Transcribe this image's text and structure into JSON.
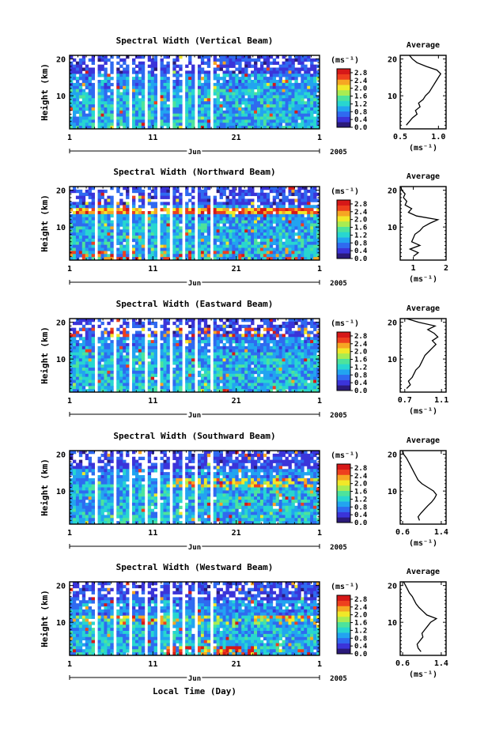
{
  "figure": {
    "xlabel": "Local Time (Day)",
    "colorbar_unit": "(ms⁻¹)",
    "colorbar_ticks": [
      "0.0",
      "0.4",
      "0.8",
      "1.2",
      "1.6",
      "2.0",
      "2.4",
      "2.8"
    ],
    "colormap": [
      "#2b1a7a",
      "#3b34d9",
      "#2f6af0",
      "#22a4f0",
      "#28d6d0",
      "#4de39c",
      "#a9ec52",
      "#f1e829",
      "#f6a623",
      "#ee3f1e",
      "#d61818"
    ]
  },
  "chart_data": [
    {
      "type": "heatmap",
      "title": "Spectral Width (Vertical Beam)",
      "ylabel": "Height (km)",
      "x_ticks": [
        "1",
        "11",
        "21",
        "1"
      ],
      "x_month": "Jun",
      "x_year": "2005",
      "y_ticks": [
        "10",
        "20"
      ],
      "ylim": [
        1,
        21
      ],
      "clim": [
        0.0,
        3.0
      ],
      "average": {
        "title": "Average",
        "xlabel": "(ms⁻¹)",
        "x_ticks": [
          "0.5",
          "1.0"
        ],
        "xlim": [
          0.5,
          1.1
        ],
        "height": [
          2,
          3,
          4,
          5,
          6,
          7,
          8,
          9,
          10,
          11,
          12,
          13,
          14,
          15,
          16,
          17,
          18,
          19,
          20,
          21
        ],
        "value": [
          0.58,
          0.62,
          0.66,
          0.72,
          0.7,
          0.76,
          0.74,
          0.8,
          0.83,
          0.88,
          0.91,
          0.94,
          0.97,
          1.0,
          1.03,
          0.98,
          0.84,
          0.72,
          0.66,
          0.62
        ]
      }
    },
    {
      "type": "heatmap",
      "title": "Spectral Width (Northward Beam)",
      "ylabel": "Height (km)",
      "x_ticks": [
        "1",
        "11",
        "21",
        "1"
      ],
      "x_month": "Jun",
      "x_year": "2005",
      "y_ticks": [
        "10",
        "20"
      ],
      "ylim": [
        1,
        21
      ],
      "clim": [
        0.0,
        3.0
      ],
      "average": {
        "title": "Average",
        "xlabel": "(ms⁻¹)",
        "x_ticks": [
          "1",
          "2"
        ],
        "xlim": [
          0.6,
          2.0
        ],
        "height": [
          2,
          3,
          4,
          5,
          6,
          7,
          8,
          9,
          10,
          11,
          12,
          13,
          14,
          15,
          16,
          17,
          18,
          19,
          20,
          21
        ],
        "value": [
          1.0,
          1.15,
          0.9,
          1.2,
          0.95,
          1.0,
          1.05,
          1.2,
          1.3,
          1.5,
          1.75,
          1.1,
          0.85,
          0.95,
          0.75,
          0.8,
          0.7,
          0.75,
          0.65,
          0.62
        ]
      }
    },
    {
      "type": "heatmap",
      "title": "Spectral Width (Eastward Beam)",
      "ylabel": "Height (km)",
      "x_ticks": [
        "1",
        "11",
        "21",
        "1"
      ],
      "x_month": "Jun",
      "x_year": "2005",
      "y_ticks": [
        "10",
        "20"
      ],
      "ylim": [
        1,
        21
      ],
      "clim": [
        0.0,
        3.0
      ],
      "average": {
        "title": "Average",
        "xlabel": "(ms⁻¹)",
        "x_ticks": [
          "0.7",
          "1.1"
        ],
        "xlim": [
          0.65,
          1.15
        ],
        "height": [
          2,
          3,
          4,
          5,
          6,
          7,
          8,
          9,
          10,
          11,
          12,
          13,
          14,
          15,
          16,
          17,
          18,
          19,
          20,
          21
        ],
        "value": [
          0.72,
          0.76,
          0.74,
          0.78,
          0.8,
          0.82,
          0.86,
          0.88,
          0.9,
          0.92,
          0.96,
          1.0,
          1.04,
          1.0,
          1.06,
          1.02,
          0.95,
          1.03,
          0.85,
          0.72
        ]
      }
    },
    {
      "type": "heatmap",
      "title": "Spectral Width (Southward Beam)",
      "ylabel": "Height (km)",
      "x_ticks": [
        "1",
        "11",
        "21",
        "1"
      ],
      "x_month": "Jun",
      "x_year": "2005",
      "y_ticks": [
        "10",
        "20"
      ],
      "ylim": [
        1,
        21
      ],
      "clim": [
        0.0,
        3.0
      ],
      "average": {
        "title": "Average",
        "xlabel": "(ms⁻¹)",
        "x_ticks": [
          "0.6",
          "1.4"
        ],
        "xlim": [
          0.55,
          1.5
        ],
        "height": [
          2,
          3,
          4,
          5,
          6,
          7,
          8,
          9,
          10,
          11,
          12,
          13,
          14,
          15,
          16,
          17,
          18,
          19,
          20,
          21
        ],
        "value": [
          0.95,
          0.92,
          0.98,
          1.05,
          1.12,
          1.2,
          1.26,
          1.3,
          1.24,
          1.12,
          1.0,
          0.92,
          0.88,
          0.84,
          0.8,
          0.76,
          0.72,
          0.68,
          0.62,
          0.6
        ]
      }
    },
    {
      "type": "heatmap",
      "title": "Spectral Width (Westward Beam)",
      "ylabel": "Height (km)",
      "x_ticks": [
        "1",
        "11",
        "21",
        "1"
      ],
      "x_month": "Jun",
      "x_year": "2005",
      "y_ticks": [
        "10",
        "20"
      ],
      "ylim": [
        1,
        21
      ],
      "clim": [
        0.0,
        3.0
      ],
      "average": {
        "title": "Average",
        "xlabel": "(ms⁻¹)",
        "x_ticks": [
          "0.6",
          "1.4"
        ],
        "xlim": [
          0.55,
          1.5
        ],
        "height": [
          2,
          3,
          4,
          5,
          6,
          7,
          8,
          9,
          10,
          11,
          12,
          13,
          14,
          15,
          16,
          17,
          18,
          19,
          20,
          21
        ],
        "value": [
          0.98,
          0.92,
          0.9,
          0.96,
          1.02,
          1.0,
          1.06,
          1.12,
          1.18,
          1.3,
          1.1,
          1.02,
          0.94,
          0.88,
          0.84,
          0.8,
          0.74,
          0.7,
          0.66,
          0.62
        ]
      }
    }
  ]
}
